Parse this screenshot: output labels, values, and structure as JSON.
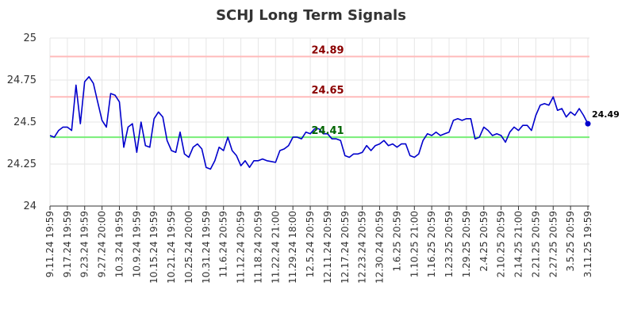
{
  "chart_data": {
    "type": "line",
    "title": "SCHJ Long Term Signals",
    "xlabel": "",
    "ylabel": "",
    "ylim": [
      24,
      25
    ],
    "y_ticks": [
      "24",
      "24.25",
      "24.5",
      "24.75",
      "25"
    ],
    "x_tick_labels": [
      "9.11.24 19:59",
      "9.17.24 19:59",
      "9.23.24 19:59",
      "9.27.24 20:00",
      "10.3.24 19:59",
      "10.9.24 19:59",
      "10.15.24 19:59",
      "10.21.24 19:59",
      "10.25.24 20:00",
      "10.31.24 19:59",
      "11.6.24 20:59",
      "11.12.24 20:59",
      "11.18.24 20:59",
      "11.22.24 21:00",
      "11.29.24 18:00",
      "12.5.24 20:59",
      "12.11.24 20:59",
      "12.17.24 20:59",
      "12.23.24 20:59",
      "12.30.24 20:59",
      "1.6.25 20:59",
      "1.10.25 21:00",
      "1.16.25 20:59",
      "1.23.25 20:59",
      "1.29.25 20:59",
      "2.4.25 20:59",
      "2.10.25 20:59",
      "2.14.25 21:00",
      "2.21.25 20:59",
      "2.27.25 20:59",
      "3.5.25 20:59",
      "3.11.25 19:59"
    ],
    "reference_lines": [
      {
        "label": "24.89",
        "value": 24.89,
        "line_color": "#ffbbbb",
        "text_color": "#8b0000"
      },
      {
        "label": "24.65",
        "value": 24.65,
        "line_color": "#ffbbbb",
        "text_color": "#8b0000"
      },
      {
        "label": "24.41",
        "value": 24.41,
        "line_color": "#77ee77",
        "text_color": "#006400"
      }
    ],
    "last_value_label": "24.49",
    "series_color": "#0000cc",
    "grid": true,
    "values": [
      24.42,
      24.41,
      24.45,
      24.47,
      24.47,
      24.45,
      24.72,
      24.49,
      24.74,
      24.77,
      24.73,
      24.62,
      24.51,
      24.47,
      24.67,
      24.66,
      24.62,
      24.35,
      24.47,
      24.49,
      24.32,
      24.5,
      24.36,
      24.35,
      24.52,
      24.56,
      24.53,
      24.39,
      24.33,
      24.32,
      24.44,
      24.31,
      24.29,
      24.35,
      24.37,
      24.34,
      24.23,
      24.22,
      24.27,
      24.35,
      24.33,
      24.41,
      24.33,
      24.3,
      24.24,
      24.27,
      24.23,
      24.27,
      24.27,
      24.28,
      24.27,
      24.265,
      24.26,
      24.33,
      24.34,
      24.36,
      24.41,
      24.41,
      24.4,
      24.44,
      24.43,
      24.46,
      24.46,
      24.43,
      24.43,
      24.4,
      24.4,
      24.39,
      24.3,
      24.29,
      24.31,
      24.31,
      24.32,
      24.36,
      24.33,
      24.36,
      24.37,
      24.39,
      24.36,
      24.37,
      24.35,
      24.37,
      24.37,
      24.3,
      24.29,
      24.31,
      24.39,
      24.43,
      24.42,
      24.44,
      24.42,
      24.43,
      24.44,
      24.51,
      24.52,
      24.51,
      24.52,
      24.52,
      24.4,
      24.41,
      24.47,
      24.45,
      24.42,
      24.43,
      24.42,
      24.38,
      24.44,
      24.47,
      24.45,
      24.48,
      24.48,
      24.45,
      24.54,
      24.6,
      24.61,
      24.6,
      24.65,
      24.57,
      24.58,
      24.53,
      24.56,
      24.54,
      24.58,
      24.54,
      24.49
    ]
  }
}
